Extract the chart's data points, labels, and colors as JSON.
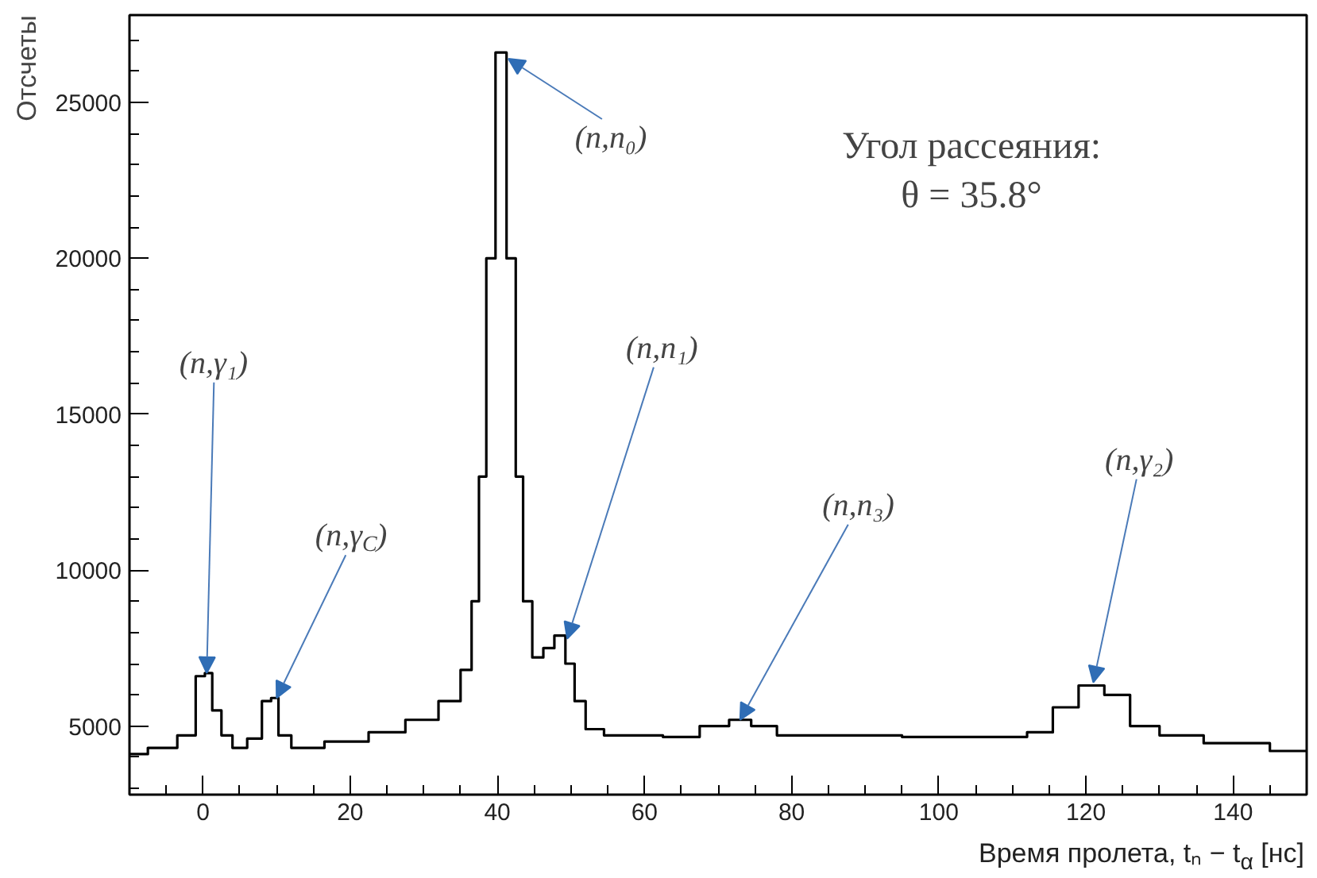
{
  "chart_data": {
    "type": "step",
    "xlabel": "Время пролета, tₙ − t$_{α}$ [нс]",
    "ylabel": "Отсчеты",
    "x": [
      -10,
      -5,
      -2,
      0,
      0.5,
      2,
      3,
      5,
      7,
      9,
      9.5,
      11,
      13,
      20,
      25,
      30,
      34,
      36,
      37,
      38,
      39,
      40.5,
      42,
      43,
      44,
      45.5,
      47,
      48.5,
      50,
      51,
      53,
      56,
      60,
      65,
      70,
      73,
      76,
      80,
      90,
      100,
      110,
      114,
      117,
      121,
      124,
      128,
      132,
      140,
      150
    ],
    "series": [
      {
        "color": "#000000",
        "values": [
          4100,
          4300,
          4700,
          6600,
          6700,
          5500,
          4700,
          4300,
          4600,
          5800,
          5900,
          4700,
          4300,
          4500,
          4800,
          5200,
          5800,
          6800,
          9000,
          13000,
          20000,
          26600,
          20000,
          13000,
          9000,
          7200,
          7500,
          7900,
          7000,
          5800,
          4900,
          4700,
          4700,
          4650,
          5000,
          5200,
          5000,
          4700,
          4700,
          4650,
          4650,
          4800,
          5600,
          6300,
          6000,
          5000,
          4700,
          4450,
          4200
        ]
      }
    ],
    "xlim": [
      -10,
      150
    ],
    "ylim": [
      2800,
      27800
    ],
    "xticks": [
      0,
      20,
      40,
      60,
      80,
      100,
      120,
      140
    ],
    "yticks": [
      5000,
      10000,
      15000,
      20000,
      25000
    ],
    "grid": false,
    "marker": "none",
    "line_style": "solid",
    "annotations": [
      {
        "text": "(n,γ₁)",
        "x": 0.5,
        "y": 6700
      },
      {
        "text": "(n,γ$_{C}$)",
        "x": 10,
        "y": 5900
      },
      {
        "text": "(n,n₀)",
        "x": 41.5,
        "y": 26400
      },
      {
        "text": "(n,n₁)",
        "x": 49.5,
        "y": 7800
      },
      {
        "text": "(n,n₃)",
        "x": 73,
        "y": 5200
      },
      {
        "text": "(n,γ₂)",
        "x": 121,
        "y": 6400
      },
      "Угол рассеяния:\nθ = 35.8°"
    ]
  }
}
